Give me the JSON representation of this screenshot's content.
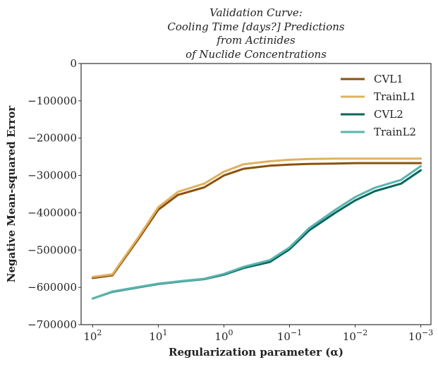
{
  "chart_data": {
    "type": "line",
    "title_lines": [
      "Validation Curve:",
      "Cooling Time [days?] Predictions",
      "from Actinides",
      "of Nuclide Concentrations"
    ],
    "xlabel": "Regularization parameter (α)",
    "ylabel": "Negative Mean-squared Error",
    "x_scale": "log",
    "x_direction": "reversed",
    "xlim": [
      150,
      0.0007
    ],
    "ylim": [
      -700000,
      0
    ],
    "grid": false,
    "legend_position": "top-right",
    "x_ticks": [
      {
        "value": 100,
        "base": "10",
        "exp": "2"
      },
      {
        "value": 10,
        "base": "10",
        "exp": "1"
      },
      {
        "value": 1,
        "base": "10",
        "exp": "0"
      },
      {
        "value": 0.1,
        "base": "10",
        "exp": "−1"
      },
      {
        "value": 0.01,
        "base": "10",
        "exp": "−2"
      },
      {
        "value": 0.001,
        "base": "10",
        "exp": "−3"
      }
    ],
    "y_ticks": [
      {
        "value": 0,
        "label": "0"
      },
      {
        "value": -100000,
        "label": "−100000"
      },
      {
        "value": -200000,
        "label": "−200000"
      },
      {
        "value": -300000,
        "label": "−300000"
      },
      {
        "value": -400000,
        "label": "−400000"
      },
      {
        "value": -500000,
        "label": "−500000"
      },
      {
        "value": -600000,
        "label": "−600000"
      },
      {
        "value": -700000,
        "label": "−700000"
      }
    ],
    "x": [
      100,
      50,
      20,
      10,
      5,
      2,
      1,
      0.5,
      0.2,
      0.1,
      0.05,
      0.02,
      0.01,
      0.005,
      0.002,
      0.001
    ],
    "series": [
      {
        "name": "CVL1",
        "color": "#8c510a",
        "values": [
          -575000,
          -568000,
          -470000,
          -392000,
          -352000,
          -332000,
          -300000,
          -282000,
          -274000,
          -271000,
          -269000,
          -268000,
          -267000,
          -267000,
          -267000,
          -267000
        ]
      },
      {
        "name": "TrainL1",
        "color": "#dfb15f",
        "values": [
          -572000,
          -565000,
          -465000,
          -385000,
          -344000,
          -322000,
          -290000,
          -270000,
          -262000,
          -258000,
          -256000,
          -255000,
          -255000,
          -255000,
          -255000,
          -255000
        ]
      },
      {
        "name": "CVL2",
        "color": "#01665e",
        "values": [
          -630000,
          -612000,
          -600000,
          -591000,
          -585000,
          -578000,
          -566000,
          -548000,
          -532000,
          -498000,
          -447000,
          -400000,
          -367000,
          -342000,
          -322000,
          -286000
        ]
      },
      {
        "name": "TrainL2",
        "color": "#5ab4ac",
        "values": [
          -630000,
          -611000,
          -599000,
          -590000,
          -584000,
          -577000,
          -564000,
          -545000,
          -527000,
          -493000,
          -441000,
          -392000,
          -358000,
          -333000,
          -312000,
          -275000
        ]
      }
    ]
  }
}
